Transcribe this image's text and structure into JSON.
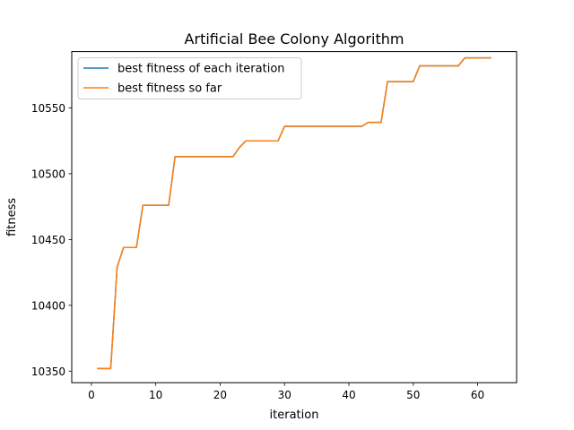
{
  "chart_data": {
    "type": "line",
    "title": "Artificial Bee Colony Algorithm",
    "xlabel": "iteration",
    "ylabel": "fitness",
    "xlim": [
      -3.05,
      66.05
    ],
    "ylim": [
      10341.2,
      10592.8
    ],
    "x_ticks": [
      0,
      10,
      20,
      30,
      40,
      50,
      60
    ],
    "y_ticks": [
      10350,
      10400,
      10450,
      10500,
      10550
    ],
    "grid": false,
    "legend_position": "upper-left",
    "x": [
      1,
      2,
      3,
      4,
      5,
      6,
      7,
      8,
      9,
      10,
      11,
      12,
      13,
      14,
      15,
      16,
      17,
      18,
      19,
      20,
      21,
      22,
      23,
      24,
      25,
      26,
      27,
      28,
      29,
      30,
      31,
      32,
      33,
      34,
      35,
      36,
      37,
      38,
      39,
      40,
      41,
      42,
      43,
      44,
      45,
      46,
      47,
      48,
      49,
      50,
      51,
      52,
      53,
      54,
      55,
      56,
      57,
      58,
      59,
      60,
      61,
      62
    ],
    "series": [
      {
        "name": "best fitness of each iteration",
        "color": "#1f77b4",
        "values": [
          10352,
          10352,
          10352,
          10429,
          10444,
          10444,
          10444,
          10476,
          10476,
          10476,
          10476,
          10476,
          10513,
          10513,
          10513,
          10513,
          10513,
          10513,
          10513,
          10513,
          10513,
          10513,
          10520,
          10525,
          10525,
          10525,
          10525,
          10525,
          10525,
          10536,
          10536,
          10536,
          10536,
          10536,
          10536,
          10536,
          10536,
          10536,
          10536,
          10536,
          10536,
          10536,
          10539,
          10539,
          10539,
          10570,
          10570,
          10570,
          10570,
          10570,
          10582,
          10582,
          10582,
          10582,
          10582,
          10582,
          10582,
          10588,
          10588,
          10588,
          10588,
          10588
        ]
      },
      {
        "name": "best fitness so far",
        "color": "#ff7f0e",
        "values": [
          10352,
          10352,
          10352,
          10429,
          10444,
          10444,
          10444,
          10476,
          10476,
          10476,
          10476,
          10476,
          10513,
          10513,
          10513,
          10513,
          10513,
          10513,
          10513,
          10513,
          10513,
          10513,
          10520,
          10525,
          10525,
          10525,
          10525,
          10525,
          10525,
          10536,
          10536,
          10536,
          10536,
          10536,
          10536,
          10536,
          10536,
          10536,
          10536,
          10536,
          10536,
          10536,
          10539,
          10539,
          10539,
          10570,
          10570,
          10570,
          10570,
          10570,
          10582,
          10582,
          10582,
          10582,
          10582,
          10582,
          10582,
          10588,
          10588,
          10588,
          10588,
          10588
        ]
      }
    ]
  }
}
